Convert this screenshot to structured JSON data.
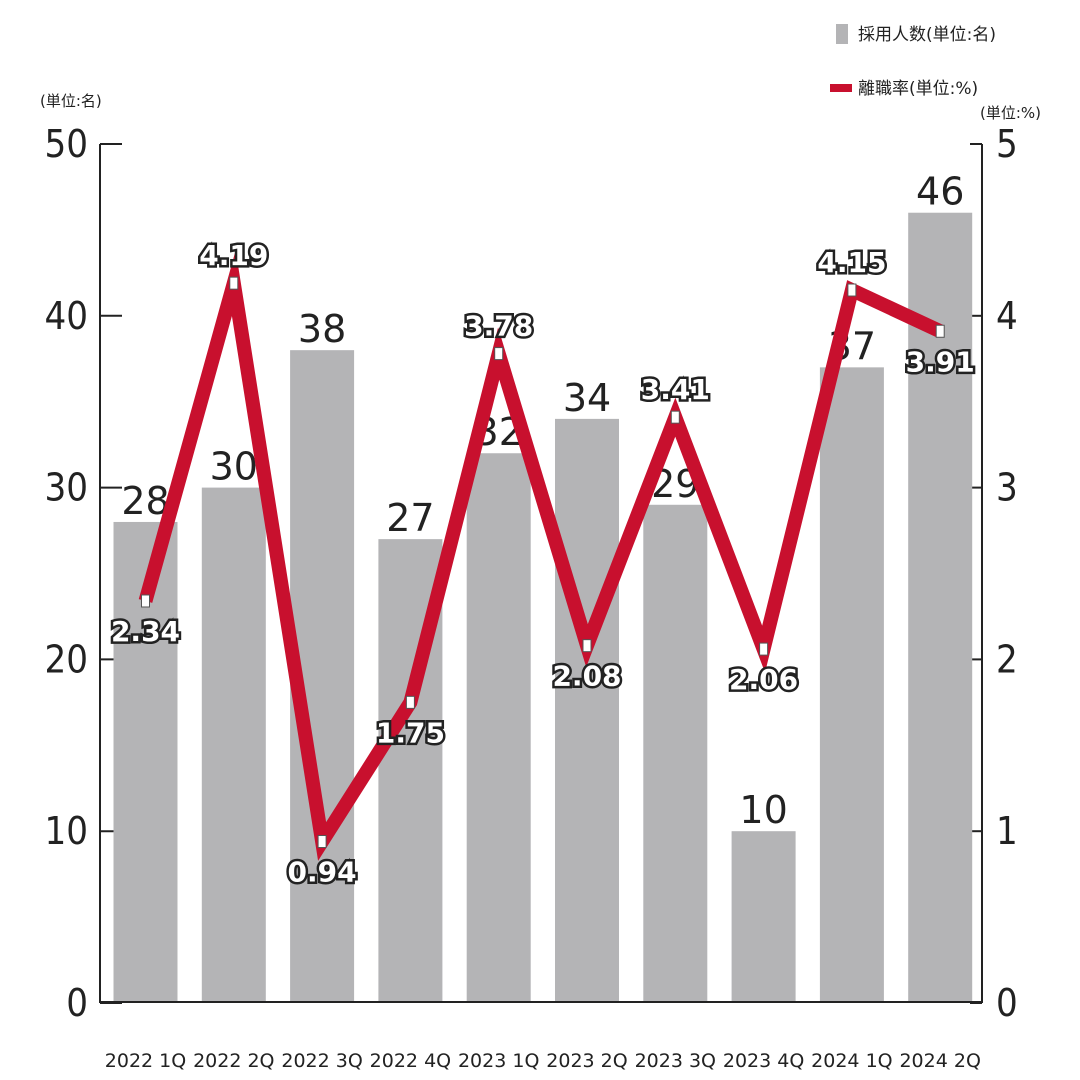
{
  "legend": {
    "bars_label": "採用人数(単位:名)",
    "line_label": "離職率(単位:%)"
  },
  "units": {
    "left": "(単位:名)",
    "right": "(単位:%)"
  },
  "colors": {
    "bar": "#b4b4b6",
    "line": "#c8102e",
    "axis": "#222222",
    "text": "#222222"
  },
  "chart_data": {
    "type": "bar",
    "categories": [
      "2022 1Q",
      "2022 2Q",
      "2022 3Q",
      "2022 4Q",
      "2023 1Q",
      "2023 2Q",
      "2023 3Q",
      "2023 4Q",
      "2024 1Q",
      "2024 2Q"
    ],
    "series": [
      {
        "name": "採用人数(単位:名)",
        "type": "bar",
        "axis": "left",
        "values": [
          28,
          30,
          38,
          27,
          32,
          34,
          29,
          10,
          37,
          46
        ]
      },
      {
        "name": "離職率(単位:%)",
        "type": "line",
        "axis": "right",
        "values": [
          2.34,
          4.19,
          0.94,
          1.75,
          3.78,
          2.08,
          3.41,
          2.06,
          4.15,
          3.91
        ]
      }
    ],
    "y_left": {
      "range": [
        0,
        50
      ],
      "ticks": [
        "0",
        "10",
        "20",
        "30",
        "40",
        "50"
      ],
      "label": "(単位:名)"
    },
    "y_right": {
      "range": [
        0,
        5
      ],
      "ticks": [
        "0",
        "1",
        "2",
        "3",
        "4",
        "5"
      ],
      "label": "(単位:%)"
    },
    "grid": false,
    "legend_position": "top-right"
  }
}
